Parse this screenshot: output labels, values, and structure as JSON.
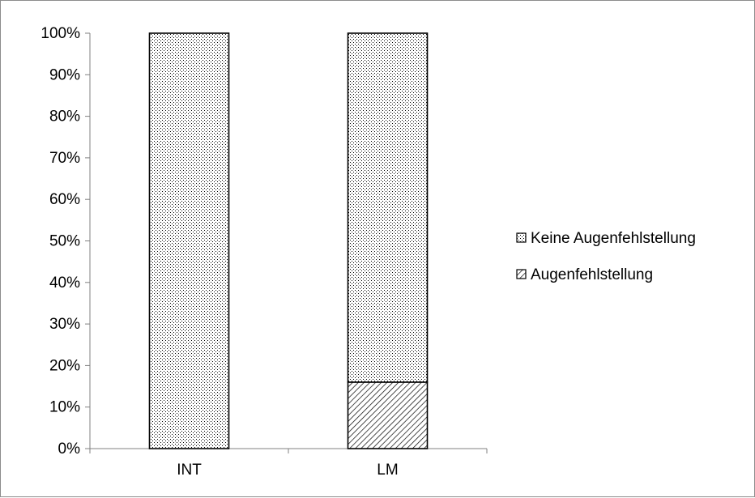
{
  "chart_data": {
    "type": "bar",
    "stacked": true,
    "percent_stacked": true,
    "categories": [
      "INT",
      "LM"
    ],
    "series": [
      {
        "name": "Augenfehlstellung",
        "values": [
          0,
          16
        ],
        "pattern": "diagonal-hatch"
      },
      {
        "name": "Keine Augenfehlstellung",
        "values": [
          100,
          84
        ],
        "pattern": "dots"
      }
    ],
    "ylim": [
      0,
      100
    ],
    "yticks": [
      "0%",
      "10%",
      "20%",
      "30%",
      "40%",
      "50%",
      "60%",
      "70%",
      "80%",
      "90%",
      "100%"
    ],
    "grid": false,
    "legend_position": "right",
    "legend_order": [
      "Keine Augenfehlstellung",
      "Augenfehlstellung"
    ],
    "colors": {
      "border": "#000000",
      "fill": "#ffffff",
      "axis": "#808080"
    }
  }
}
